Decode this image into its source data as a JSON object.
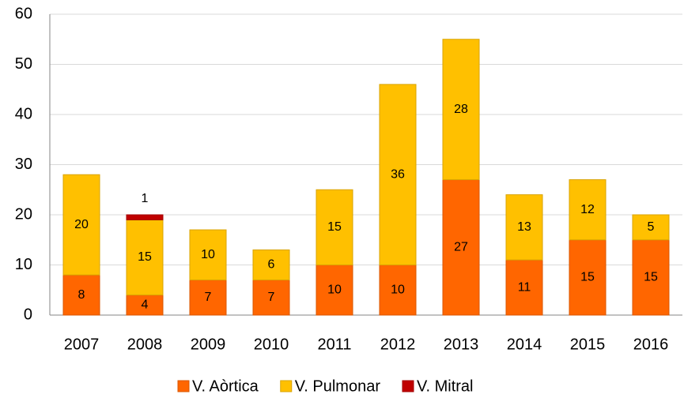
{
  "chart_data": {
    "type": "stacked_bar",
    "categories": [
      "2007",
      "2008",
      "2009",
      "2010",
      "2011",
      "2012",
      "2013",
      "2014",
      "2015",
      "2016"
    ],
    "series": [
      {
        "name": "V. Aòrtica",
        "color": "#ff6600",
        "values": [
          8,
          4,
          7,
          7,
          10,
          10,
          27,
          11,
          15,
          15
        ]
      },
      {
        "name": "V. Pulmonar",
        "color": "#ffc000",
        "values": [
          20,
          15,
          10,
          6,
          15,
          36,
          28,
          13,
          12,
          5
        ]
      },
      {
        "name": "V. Mitral",
        "color": "#c00000",
        "values": [
          null,
          1,
          null,
          null,
          null,
          null,
          null,
          null,
          null,
          null
        ]
      }
    ],
    "ylim": [
      0,
      60
    ],
    "yticks": [
      0,
      10,
      20,
      30,
      40,
      50,
      60
    ],
    "grid": true,
    "legend": "bottom"
  }
}
